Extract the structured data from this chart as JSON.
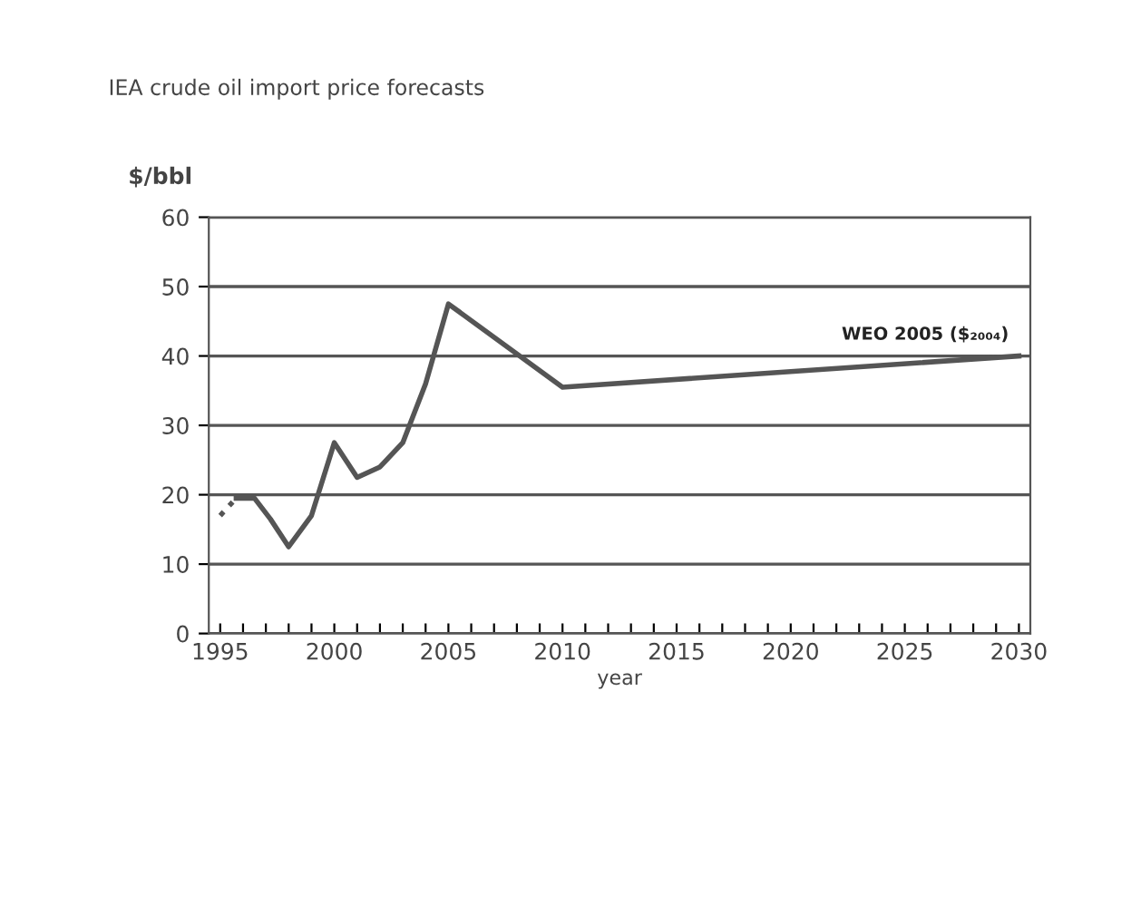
{
  "chart_data": {
    "type": "line",
    "title": "IEA crude oil import price forecasts",
    "ylabel": "$/bbl",
    "xlabel": "year",
    "series": [
      {
        "line_style": "dotted",
        "color": "#555555",
        "x": [
          1995,
          1995.7
        ],
        "values": [
          17,
          19.5
        ]
      },
      {
        "line_style": "solid",
        "color": "#555555",
        "x": [
          1995.7,
          1996.5,
          1997.2,
          1998,
          1999,
          2000,
          2001,
          2002,
          2003,
          2004,
          2005,
          2010,
          2030
        ],
        "values": [
          19.5,
          19.5,
          16.5,
          12.5,
          17,
          27.5,
          22.5,
          24,
          27.5,
          36,
          47.5,
          35.5,
          40
        ]
      }
    ],
    "annotations": [
      {
        "text": "WEO 2005 ($₂₀₀₄)",
        "x": 2030,
        "y": 40
      }
    ],
    "xlim": [
      1994.5,
      2030.5
    ],
    "ylim": [
      0,
      60
    ],
    "xticks": [
      1995,
      {
        "value": 1996,
        "label": null
      },
      {
        "value": 1997,
        "label": null
      },
      {
        "value": 1998,
        "label": null
      },
      {
        "value": 1999,
        "label": null
      },
      2000,
      {
        "value": 2001,
        "label": null
      },
      {
        "value": 2002,
        "label": null
      },
      {
        "value": 2003,
        "label": null
      },
      {
        "value": 2004,
        "label": null
      },
      2005,
      {
        "value": 2006,
        "label": null
      },
      {
        "value": 2007,
        "label": null
      },
      {
        "value": 2008,
        "label": null
      },
      {
        "value": 2009,
        "label": null
      },
      2010,
      {
        "value": 2011,
        "label": null
      },
      {
        "value": 2012,
        "label": null
      },
      {
        "value": 2013,
        "label": null
      },
      {
        "value": 2014,
        "label": null
      },
      2015,
      {
        "value": 2016,
        "label": null
      },
      {
        "value": 2017,
        "label": null
      },
      {
        "value": 2018,
        "label": null
      },
      {
        "value": 2019,
        "label": null
      },
      2020,
      {
        "value": 2021,
        "label": null
      },
      {
        "value": 2022,
        "label": null
      },
      {
        "value": 2023,
        "label": null
      },
      {
        "value": 2024,
        "label": null
      },
      2025,
      {
        "value": 2026,
        "label": null
      },
      {
        "value": 2027,
        "label": null
      },
      {
        "value": 2028,
        "label": null
      },
      {
        "value": 2029,
        "label": null
      },
      2030
    ],
    "yticks": [
      0,
      10,
      20,
      30,
      40,
      50,
      60
    ],
    "grid": "y",
    "marker": "none"
  }
}
